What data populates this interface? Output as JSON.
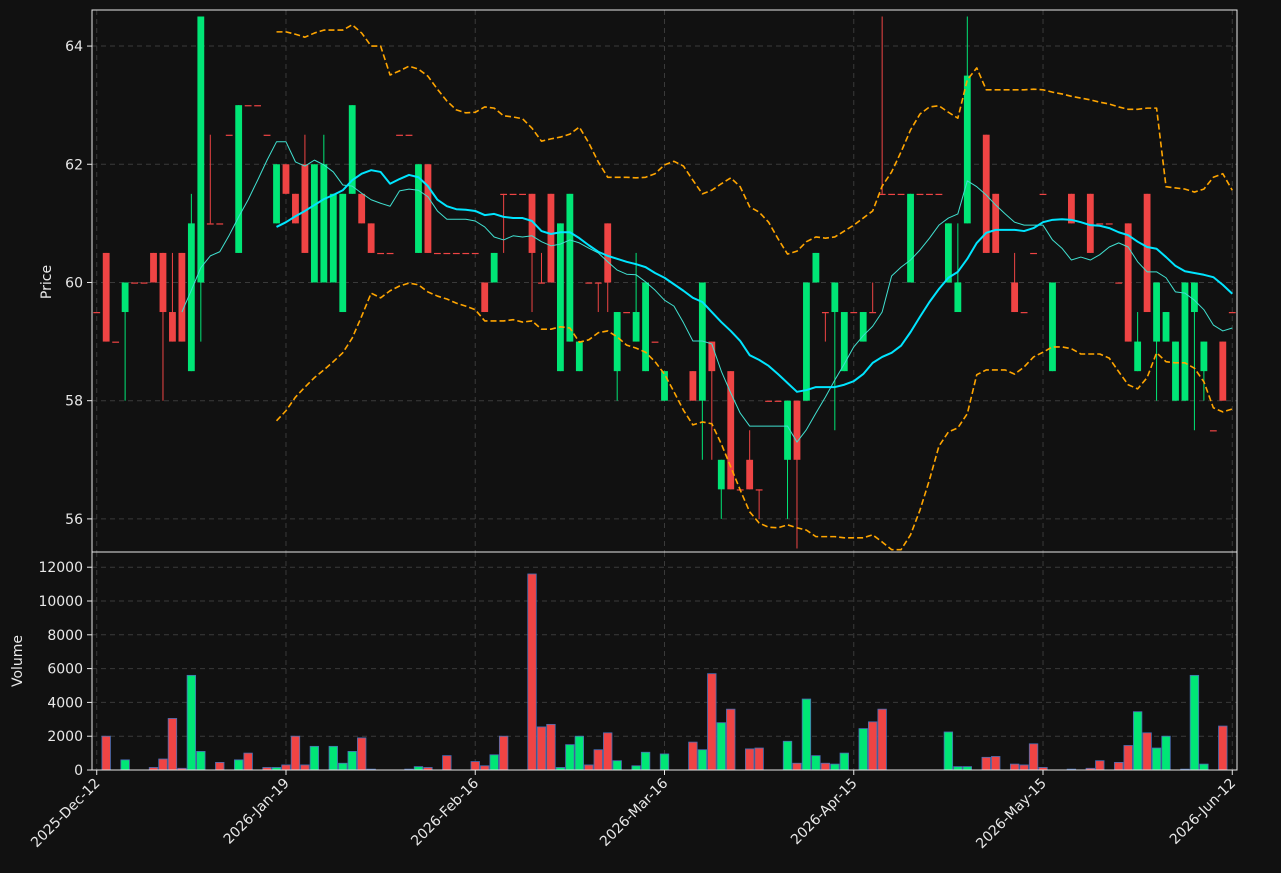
{
  "chart_data": {
    "type": "candlestick",
    "categories": [
      "2025-Dec-12",
      null,
      null,
      null,
      null,
      null,
      null,
      null,
      null,
      null,
      null,
      null,
      null,
      null,
      null,
      null,
      null,
      null,
      null,
      null,
      "2026-Jan-19",
      null,
      null,
      null,
      null,
      null,
      null,
      null,
      null,
      null,
      null,
      null,
      null,
      null,
      null,
      null,
      null,
      null,
      null,
      null,
      "2026-Feb-16",
      null,
      null,
      null,
      null,
      null,
      null,
      null,
      null,
      null,
      null,
      null,
      null,
      null,
      null,
      null,
      null,
      null,
      null,
      null,
      "2026-Mar-16",
      null,
      null,
      null,
      null,
      null,
      null,
      null,
      null,
      null,
      null,
      null,
      null,
      null,
      null,
      null,
      null,
      null,
      null,
      null,
      "2026-Apr-15",
      null,
      null,
      null,
      null,
      null,
      null,
      null,
      null,
      null,
      null,
      null,
      null,
      null,
      null,
      null,
      null,
      null,
      null,
      null,
      "2026-May-15",
      null,
      null,
      null,
      null,
      null,
      null,
      null,
      null,
      null,
      null,
      null,
      null,
      null,
      null,
      null,
      null,
      null,
      null,
      null,
      "2026-Jun-12"
    ],
    "open": [
      59.5,
      60.5,
      59,
      59.5,
      60,
      60,
      60.5,
      60.5,
      59.5,
      60.5,
      58.5,
      60,
      61,
      61,
      62.5,
      60.5,
      63,
      63,
      62.5,
      61,
      62,
      61.5,
      62,
      60,
      60,
      60,
      59.5,
      61.5,
      61.5,
      61,
      60.5,
      60.5,
      62.5,
      62.5,
      60.5,
      62,
      60.5,
      60.5,
      60.5,
      60.5,
      60.5,
      60,
      60,
      61.5,
      61.5,
      61.5,
      61.5,
      60,
      61.5,
      58.5,
      59,
      58.5,
      60,
      60,
      61,
      58.5,
      59.5,
      59,
      58.5,
      59,
      58,
      null,
      null,
      58.5,
      58,
      59,
      56.5,
      58.5,
      56.5,
      57,
      56.5,
      58,
      58,
      57,
      58,
      58,
      60,
      59.5,
      59.5,
      58.5,
      59.5,
      59,
      59.5,
      61.5,
      61.5,
      61.5,
      60,
      61.5,
      61.5,
      61.5,
      60,
      59.5,
      61,
      null,
      62.5,
      61.5,
      null,
      60,
      59.5,
      60.5,
      61.5,
      58.5,
      null,
      61.5,
      null,
      61.5,
      61,
      61,
      60,
      61,
      58.5,
      61.5,
      59,
      59,
      58,
      58,
      59.5,
      58.5,
      57.5,
      59,
      59.5
    ],
    "high": [
      59.5,
      60.5,
      59,
      60,
      60,
      60,
      60.5,
      60.5,
      60.5,
      60.5,
      61.5,
      64.5,
      62.5,
      61,
      62.5,
      63,
      63,
      63,
      62.5,
      62,
      62,
      61.5,
      62.5,
      62,
      62.5,
      61.5,
      61.5,
      63,
      61.5,
      61,
      60.5,
      60.5,
      62.5,
      62.5,
      62,
      62,
      60.5,
      60.5,
      60.5,
      60.5,
      60.5,
      60,
      60.5,
      61.5,
      61.5,
      61.5,
      61.5,
      60.5,
      61.5,
      61,
      61.5,
      59,
      60,
      60,
      61,
      59.5,
      59.5,
      60.5,
      60,
      59,
      58.5,
      null,
      null,
      58.5,
      60,
      59,
      57,
      58.5,
      56.5,
      57.5,
      56.5,
      58,
      58,
      58,
      58,
      60,
      60.5,
      59.5,
      60,
      59.5,
      59.5,
      59.5,
      60,
      64.5,
      61.5,
      61.5,
      61.5,
      61.5,
      61.5,
      61.5,
      61,
      61,
      64.5,
      null,
      62.5,
      61.5,
      null,
      60.5,
      59.5,
      60.5,
      61.5,
      60,
      null,
      61.5,
      null,
      61.5,
      61,
      61,
      60,
      61,
      59.5,
      61.5,
      60,
      59.5,
      59,
      60,
      60,
      59,
      57.5,
      59,
      59.5
    ],
    "low": [
      59.5,
      59,
      59,
      58,
      60,
      60,
      60,
      58,
      59,
      59,
      58.5,
      59,
      61,
      61,
      62.5,
      60.5,
      63,
      63,
      62.5,
      61,
      61.5,
      61,
      60.5,
      60,
      60,
      60,
      59.5,
      61.5,
      61,
      60.5,
      60.5,
      60.5,
      62.5,
      62.5,
      60.5,
      60.5,
      60.5,
      60.5,
      60.5,
      60.5,
      60.5,
      59.5,
      60,
      60.5,
      61.5,
      61.5,
      59.5,
      60,
      60,
      58.5,
      59,
      58.5,
      60,
      59.5,
      59.5,
      58,
      59.5,
      59,
      58.5,
      59,
      58,
      null,
      null,
      58,
      57,
      57,
      56,
      56.5,
      56.5,
      56.5,
      56,
      58,
      58,
      56,
      55.5,
      58,
      60,
      59,
      57.5,
      58.5,
      59.5,
      59,
      59.5,
      61.5,
      61.5,
      61.5,
      60,
      61.5,
      61.5,
      61.5,
      60,
      59.5,
      61,
      null,
      60.5,
      60.5,
      null,
      59.5,
      59.5,
      60.5,
      61.5,
      58.5,
      null,
      61,
      null,
      60.5,
      61,
      61,
      60,
      59,
      58.5,
      59.5,
      58,
      59,
      58,
      58,
      57.5,
      58,
      57.5,
      58,
      59.5
    ],
    "close": [
      59.5,
      59,
      59,
      60,
      60,
      60,
      60,
      59.5,
      59,
      59,
      61,
      64.5,
      61,
      61,
      62.5,
      63,
      63,
      63,
      62.5,
      62,
      61.5,
      61,
      60.5,
      62,
      62,
      61.5,
      61.5,
      63,
      61,
      60.5,
      60.5,
      60.5,
      62.5,
      62.5,
      62,
      60.5,
      60.5,
      60.5,
      60.5,
      60.5,
      60.5,
      59.5,
      60.5,
      61.5,
      61.5,
      61.5,
      60.5,
      60,
      60,
      61,
      61.5,
      59,
      60,
      60,
      60,
      59.5,
      59.5,
      59.5,
      60,
      59,
      58.5,
      null,
      null,
      58,
      60,
      58.5,
      57,
      56.5,
      56.5,
      56.5,
      56.5,
      58,
      58,
      58,
      57,
      60,
      60.5,
      59.5,
      60,
      59.5,
      59.5,
      59.5,
      59.5,
      61.5,
      61.5,
      61.5,
      61.5,
      61.5,
      61.5,
      61.5,
      61,
      60,
      63.5,
      null,
      60.5,
      60.5,
      null,
      59.5,
      59.5,
      60.5,
      61.5,
      60,
      null,
      61,
      null,
      60.5,
      61,
      61,
      60,
      59,
      59,
      59.5,
      60,
      59.5,
      59,
      60,
      60,
      59,
      57.5,
      58,
      59.5
    ],
    "up_color": "#00e676",
    "down_color": "#ef4444",
    "ylim": [
      55.44,
      64.61
    ],
    "yticks": [
      56,
      58,
      60,
      62,
      64
    ],
    "ylabel": "Price",
    "grid": true,
    "lines": [
      {
        "color": "#ffa500",
        "width": 1.6,
        "dash": true,
        "values": [
          null,
          null,
          null,
          null,
          null,
          null,
          null,
          null,
          null,
          null,
          null,
          null,
          null,
          null,
          null,
          null,
          null,
          null,
          null,
          64.24,
          64.24,
          64.2,
          64.15,
          64.22,
          64.27,
          64.27,
          64.27,
          64.36,
          64.22,
          64.0,
          64.0,
          63.51,
          63.58,
          63.66,
          63.61,
          63.49,
          63.27,
          63.07,
          62.92,
          62.87,
          62.88,
          62.97,
          62.95,
          62.82,
          62.8,
          62.77,
          62.61,
          62.39,
          62.43,
          62.46,
          62.51,
          62.63,
          62.36,
          62.04,
          61.78,
          61.78,
          61.78,
          61.77,
          61.78,
          61.84,
          61.99,
          62.05,
          61.97,
          61.73,
          61.5,
          61.56,
          61.67,
          61.77,
          61.62,
          61.28,
          61.19,
          61.02,
          60.74,
          60.48,
          60.53,
          60.69,
          60.77,
          60.75,
          60.77,
          60.87,
          60.97,
          61.09,
          61.21,
          61.63,
          61.87,
          62.21,
          62.58,
          62.85,
          62.97,
          62.99,
          62.88,
          62.78,
          63.43,
          63.63,
          63.26,
          63.26,
          63.26,
          63.26,
          63.26,
          63.27,
          63.26,
          63.22,
          63.19,
          63.15,
          63.12,
          63.09,
          63.05,
          63.02,
          62.97,
          62.93,
          62.93,
          62.95,
          62.95,
          61.62,
          61.6,
          61.58,
          61.53,
          61.58,
          61.78,
          61.84,
          61.56
        ]
      },
      {
        "color": "#ffa500",
        "width": 1.6,
        "dash": true,
        "values": [
          null,
          null,
          null,
          null,
          null,
          null,
          null,
          null,
          null,
          null,
          null,
          null,
          null,
          null,
          null,
          null,
          null,
          null,
          null,
          57.66,
          57.83,
          58.06,
          58.23,
          58.39,
          58.52,
          58.66,
          58.81,
          59.06,
          59.43,
          59.82,
          59.74,
          59.86,
          59.94,
          59.99,
          59.96,
          59.84,
          59.77,
          59.72,
          59.65,
          59.6,
          59.54,
          59.35,
          59.35,
          59.35,
          59.37,
          59.33,
          59.35,
          59.21,
          59.21,
          59.25,
          59.23,
          58.99,
          59.03,
          59.15,
          59.18,
          59.08,
          58.94,
          58.89,
          58.82,
          58.66,
          58.45,
          58.15,
          57.84,
          57.59,
          57.64,
          57.61,
          57.27,
          56.88,
          56.49,
          56.12,
          55.93,
          55.86,
          55.85,
          55.9,
          55.85,
          55.81,
          55.7,
          55.7,
          55.7,
          55.68,
          55.68,
          55.68,
          55.73,
          55.61,
          55.48,
          55.48,
          55.73,
          56.15,
          56.66,
          57.23,
          57.47,
          57.54,
          57.78,
          58.44,
          58.52,
          58.52,
          58.52,
          58.45,
          58.57,
          58.74,
          58.82,
          58.91,
          58.91,
          58.88,
          58.79,
          58.79,
          58.79,
          58.72,
          58.49,
          58.27,
          58.2,
          58.39,
          58.81,
          58.66,
          58.64,
          58.64,
          58.55,
          58.32,
          57.88,
          57.81,
          57.86
        ]
      },
      {
        "color": "#40e0d0",
        "width": 1,
        "dash": false,
        "values": [
          null,
          null,
          null,
          null,
          null,
          null,
          null,
          null,
          null,
          59.5,
          59.87,
          60.25,
          60.45,
          60.52,
          60.8,
          61.11,
          61.4,
          61.73,
          62.07,
          62.38,
          62.38,
          62.04,
          61.97,
          62.07,
          61.99,
          61.87,
          61.65,
          61.63,
          61.51,
          61.4,
          61.34,
          61.29,
          61.55,
          61.58,
          61.56,
          61.45,
          61.21,
          61.07,
          61.07,
          61.07,
          61.04,
          60.94,
          60.77,
          60.72,
          60.79,
          60.77,
          60.79,
          60.69,
          60.62,
          60.65,
          60.72,
          60.67,
          60.58,
          60.5,
          60.35,
          60.21,
          60.14,
          60.13,
          60.01,
          59.87,
          59.7,
          59.6,
          59.32,
          59.01,
          59.01,
          58.96,
          58.5,
          58.13,
          57.79,
          57.57,
          57.57,
          57.57,
          57.57,
          57.57,
          57.3,
          57.51,
          57.79,
          58.06,
          58.35,
          58.62,
          58.91,
          59.1,
          59.26,
          59.5,
          60.11,
          60.26,
          60.38,
          60.55,
          60.75,
          60.97,
          61.09,
          61.16,
          61.72,
          61.62,
          61.48,
          61.31,
          61.16,
          61.02,
          60.97,
          60.97,
          60.97,
          60.72,
          60.58,
          60.38,
          60.43,
          60.38,
          60.47,
          60.6,
          60.67,
          60.6,
          60.35,
          60.18,
          60.18,
          60.08,
          59.84,
          59.82,
          59.7,
          59.54,
          59.28,
          59.18,
          59.23
        ]
      },
      {
        "color": "#00e5ff",
        "width": 2,
        "dash": false,
        "values": [
          null,
          null,
          null,
          null,
          null,
          null,
          null,
          null,
          null,
          null,
          null,
          null,
          null,
          null,
          null,
          null,
          null,
          null,
          null,
          60.94,
          61.02,
          61.12,
          61.21,
          61.31,
          61.41,
          61.48,
          61.56,
          61.73,
          61.84,
          61.9,
          61.87,
          61.67,
          61.75,
          61.82,
          61.78,
          61.63,
          61.4,
          61.29,
          61.24,
          61.23,
          61.21,
          61.14,
          61.16,
          61.11,
          61.09,
          61.09,
          61.04,
          60.87,
          60.82,
          60.85,
          60.85,
          60.75,
          60.63,
          60.52,
          60.45,
          60.4,
          60.35,
          60.31,
          60.26,
          60.16,
          60.08,
          59.97,
          59.86,
          59.74,
          59.67,
          59.5,
          59.33,
          59.18,
          59.01,
          58.77,
          58.69,
          58.59,
          58.45,
          58.3,
          58.15,
          58.18,
          58.23,
          58.23,
          58.23,
          58.27,
          58.33,
          58.45,
          58.64,
          58.74,
          58.81,
          58.93,
          59.16,
          59.42,
          59.67,
          59.89,
          60.08,
          60.18,
          60.4,
          60.67,
          60.84,
          60.89,
          60.89,
          60.89,
          60.87,
          60.92,
          61.02,
          61.06,
          61.07,
          61.06,
          61.02,
          60.97,
          60.96,
          60.92,
          60.85,
          60.8,
          60.69,
          60.6,
          60.57,
          60.43,
          60.28,
          60.19,
          60.16,
          60.13,
          60.09,
          59.96,
          59.81
        ]
      }
    ],
    "volume": {
      "values": [
        0,
        2000,
        0,
        600,
        0,
        0,
        150,
        650,
        3050,
        100,
        5600,
        1100,
        0,
        450,
        0,
        600,
        1000,
        0,
        150,
        150,
        300,
        2000,
        300,
        1400,
        0,
        1400,
        400,
        1100,
        1900,
        50,
        0,
        0,
        0,
        50,
        200,
        150,
        0,
        850,
        0,
        0,
        500,
        250,
        900,
        2000,
        0,
        0,
        11600,
        2550,
        2700,
        150,
        1500,
        2000,
        300,
        1200,
        2200,
        550,
        0,
        250,
        1050,
        0,
        950,
        null,
        null,
        1650,
        1200,
        5700,
        2800,
        3600,
        0,
        1250,
        1300,
        0,
        0,
        1700,
        400,
        4200,
        850,
        400,
        350,
        1000,
        0,
        2450,
        2850,
        3600,
        0,
        0,
        0,
        0,
        0,
        0,
        2250,
        200,
        200,
        null,
        750,
        800,
        null,
        350,
        300,
        1550,
        150,
        0,
        null,
        50,
        null,
        100,
        550,
        0,
        450,
        1450,
        3450,
        2200,
        1300,
        2000,
        0,
        50,
        5600,
        350,
        0,
        2600,
        0
      ],
      "ylim": [
        0,
        12900
      ],
      "yticks": [
        0,
        2000,
        4000,
        6000,
        8000,
        10000,
        12000
      ],
      "ylabel": "Volume",
      "edgecolor": "#4a6fb5"
    }
  }
}
